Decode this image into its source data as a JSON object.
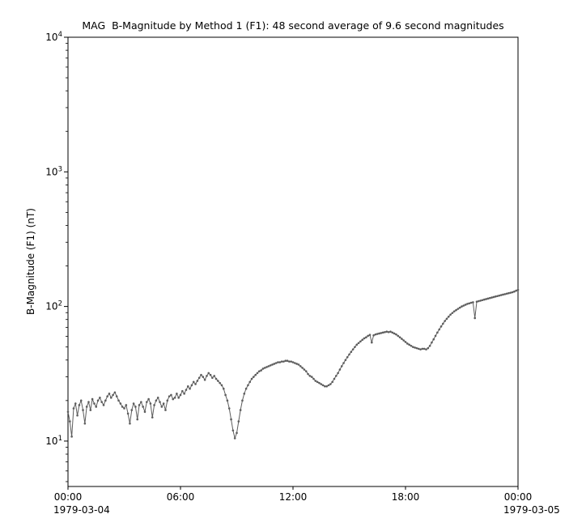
{
  "window": {
    "background": "#ffffff"
  },
  "chart_data": {
    "type": "scatter",
    "title": "MAG  B-Magnitude by Method 1 (F1): 48 second average of 9.6 second magnitudes",
    "xlabel": "",
    "ylabel": "B-Magnitude (F1) (nT)",
    "yscale": "log",
    "xlim": [
      0,
      24
    ],
    "ylim": [
      4.6,
      10000
    ],
    "grid": false,
    "legend": "none",
    "x_unit": "hours since 1979-03-04 00:00",
    "x_ticks": [
      {
        "pos": 0,
        "label": "00:00",
        "date": "1979-03-04"
      },
      {
        "pos": 6,
        "label": "06:00"
      },
      {
        "pos": 12,
        "label": "12:00"
      },
      {
        "pos": 18,
        "label": "18:00"
      },
      {
        "pos": 24,
        "label": "00:00",
        "date": "1979-03-05"
      }
    ],
    "y_ticks": [
      {
        "value": 10,
        "base": "10",
        "exp": "1"
      },
      {
        "value": 100,
        "base": "10",
        "exp": "2"
      },
      {
        "value": 1000,
        "base": "10",
        "exp": "3"
      },
      {
        "value": 10000,
        "base": "10",
        "exp": "4"
      }
    ],
    "series": [
      {
        "name": "B-Magnitude (F1)",
        "color": "#5d5d5d",
        "marker": "dot",
        "x_start": 0.0,
        "x_step": 0.1,
        "y": [
          16.5,
          14.0,
          10.8,
          17.5,
          19.0,
          15.5,
          18.5,
          20.0,
          17.0,
          13.5,
          18.0,
          19.5,
          17.0,
          20.5,
          19.0,
          18.0,
          20.0,
          21.0,
          19.5,
          18.5,
          20.0,
          21.5,
          22.5,
          21.0,
          22.0,
          23.0,
          21.5,
          20.0,
          19.0,
          18.0,
          17.5,
          18.5,
          16.0,
          13.5,
          17.0,
          19.0,
          18.0,
          14.5,
          18.5,
          19.5,
          18.0,
          16.5,
          19.5,
          20.5,
          19.0,
          15.0,
          18.5,
          20.0,
          21.0,
          19.5,
          18.0,
          19.0,
          17.0,
          20.0,
          21.5,
          22.0,
          20.5,
          21.0,
          22.5,
          21.0,
          22.0,
          23.5,
          22.5,
          24.0,
          25.5,
          24.5,
          26.0,
          27.5,
          26.5,
          28.0,
          29.5,
          31.0,
          30.0,
          28.5,
          30.5,
          32.0,
          31.0,
          29.5,
          30.5,
          29.0,
          28.0,
          27.0,
          26.0,
          24.5,
          22.0,
          20.0,
          17.5,
          14.5,
          12.0,
          10.5,
          11.5,
          14.0,
          17.0,
          20.0,
          22.5,
          24.5,
          26.0,
          27.5,
          29.0,
          30.0,
          31.0,
          32.0,
          33.0,
          33.5,
          34.5,
          35.0,
          35.5,
          36.0,
          36.5,
          37.0,
          37.5,
          38.0,
          38.5,
          38.5,
          39.0,
          39.0,
          39.5,
          39.5,
          39.0,
          39.0,
          38.5,
          38.0,
          37.5,
          37.0,
          36.0,
          35.0,
          34.0,
          33.0,
          31.5,
          30.5,
          30.0,
          29.0,
          28.0,
          27.5,
          27.0,
          26.5,
          26.0,
          25.5,
          25.5,
          26.0,
          26.5,
          27.5,
          29.0,
          30.5,
          32.0,
          34.0,
          36.0,
          38.0,
          40.0,
          42.0,
          44.0,
          46.0,
          48.0,
          50.0,
          52.0,
          53.5,
          55.0,
          56.5,
          58.0,
          59.0,
          60.5,
          61.5,
          54.0,
          61.0,
          62.0,
          62.5,
          63.0,
          63.5,
          64.0,
          64.5,
          65.0,
          64.5,
          65.0,
          64.0,
          63.0,
          62.0,
          60.5,
          59.0,
          57.5,
          56.0,
          54.5,
          53.0,
          52.0,
          51.0,
          50.0,
          49.5,
          49.0,
          48.5,
          48.0,
          48.5,
          48.5,
          48.0,
          49.0,
          51.0,
          54.0,
          57.0,
          60.5,
          64.0,
          67.5,
          71.0,
          74.5,
          78.0,
          81.0,
          84.0,
          87.0,
          89.5,
          92.0,
          94.0,
          96.0,
          98.0,
          100.0,
          101.5,
          103.0,
          104.5,
          105.5,
          106.5,
          107.5,
          82.0,
          108.5,
          109.5,
          110.5,
          111.5,
          112.5,
          113.5,
          114.5,
          115.5,
          116.5,
          117.5,
          118.5,
          119.5,
          120.5,
          121.5,
          122.5,
          123.5,
          124.5,
          125.5,
          126.5,
          127.5,
          129.0,
          131.0,
          133.0
        ]
      }
    ]
  }
}
